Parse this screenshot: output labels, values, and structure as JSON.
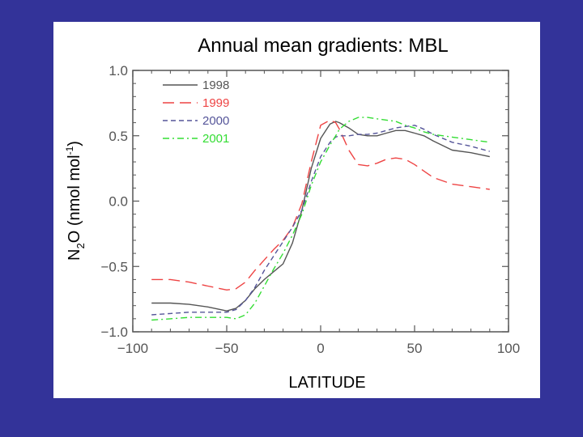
{
  "chart_data": {
    "type": "line",
    "title": "Annual mean gradients: MBL",
    "xlabel": "LATITUDE",
    "ylabel": {
      "pre": "N",
      "sub": "2",
      "mid": "O  (nmol mol",
      "sup": "-1",
      "post": ")"
    },
    "xlim": [
      -100,
      100
    ],
    "ylim": [
      -1.0,
      1.0
    ],
    "xticks": [
      -100,
      -50,
      0,
      50,
      100
    ],
    "xtick_labels": [
      "−100",
      "−50",
      "0",
      "50",
      "100"
    ],
    "yticks": [
      1.0,
      0.5,
      0.0,
      -0.5,
      -1.0
    ],
    "ytick_labels": [
      "1.0",
      "0.5",
      "0.0",
      "−0.5",
      "−1.0"
    ],
    "grid": false,
    "legend_position": "top-left",
    "series": [
      {
        "name": "1998",
        "color": "#555555",
        "dash": "",
        "x": [
          -90,
          -80,
          -70,
          -60,
          -50,
          -45,
          -40,
          -35,
          -30,
          -25,
          -20,
          -15,
          -10,
          -5,
          0,
          5,
          8,
          10,
          15,
          20,
          25,
          30,
          35,
          40,
          45,
          50,
          55,
          60,
          70,
          80,
          90
        ],
        "y": [
          -0.78,
          -0.78,
          -0.79,
          -0.81,
          -0.84,
          -0.82,
          -0.76,
          -0.67,
          -0.6,
          -0.54,
          -0.48,
          -0.32,
          -0.07,
          0.25,
          0.48,
          0.59,
          0.61,
          0.6,
          0.56,
          0.51,
          0.5,
          0.5,
          0.52,
          0.54,
          0.54,
          0.52,
          0.5,
          0.46,
          0.39,
          0.37,
          0.34
        ]
      },
      {
        "name": "1999",
        "color": "#ee4444",
        "dash": "14,7",
        "x": [
          -90,
          -80,
          -70,
          -60,
          -50,
          -45,
          -40,
          -35,
          -30,
          -25,
          -20,
          -15,
          -10,
          -5,
          0,
          5,
          8,
          10,
          15,
          20,
          25,
          30,
          35,
          40,
          45,
          50,
          55,
          60,
          70,
          80,
          90
        ],
        "y": [
          -0.6,
          -0.6,
          -0.62,
          -0.65,
          -0.68,
          -0.67,
          -0.62,
          -0.53,
          -0.45,
          -0.37,
          -0.3,
          -0.2,
          -0.02,
          0.3,
          0.58,
          0.62,
          0.6,
          0.55,
          0.39,
          0.28,
          0.27,
          0.29,
          0.32,
          0.33,
          0.32,
          0.28,
          0.23,
          0.18,
          0.13,
          0.11,
          0.09
        ]
      },
      {
        "name": "2000",
        "color": "#555599",
        "dash": "6,4",
        "x": [
          -90,
          -80,
          -70,
          -60,
          -50,
          -45,
          -40,
          -35,
          -30,
          -25,
          -20,
          -15,
          -10,
          -5,
          0,
          5,
          8,
          10,
          15,
          20,
          25,
          30,
          35,
          40,
          45,
          50,
          55,
          60,
          70,
          80,
          90
        ],
        "y": [
          -0.87,
          -0.86,
          -0.85,
          -0.85,
          -0.85,
          -0.83,
          -0.76,
          -0.66,
          -0.53,
          -0.42,
          -0.31,
          -0.2,
          -0.07,
          0.15,
          0.34,
          0.45,
          0.49,
          0.5,
          0.5,
          0.51,
          0.51,
          0.52,
          0.54,
          0.56,
          0.57,
          0.58,
          0.55,
          0.51,
          0.45,
          0.42,
          0.38
        ]
      },
      {
        "name": "2001",
        "color": "#33dd33",
        "dash": "8,4,2,4",
        "x": [
          -90,
          -80,
          -70,
          -60,
          -50,
          -45,
          -40,
          -35,
          -30,
          -25,
          -20,
          -15,
          -10,
          -5,
          0,
          5,
          8,
          10,
          15,
          20,
          25,
          30,
          35,
          40,
          45,
          50,
          55,
          60,
          70,
          80,
          90
        ],
        "y": [
          -0.91,
          -0.9,
          -0.89,
          -0.89,
          -0.89,
          -0.9,
          -0.87,
          -0.78,
          -0.65,
          -0.52,
          -0.4,
          -0.26,
          -0.1,
          0.12,
          0.3,
          0.43,
          0.5,
          0.55,
          0.61,
          0.64,
          0.64,
          0.63,
          0.62,
          0.61,
          0.58,
          0.56,
          0.53,
          0.51,
          0.49,
          0.47,
          0.45
        ]
      }
    ]
  }
}
